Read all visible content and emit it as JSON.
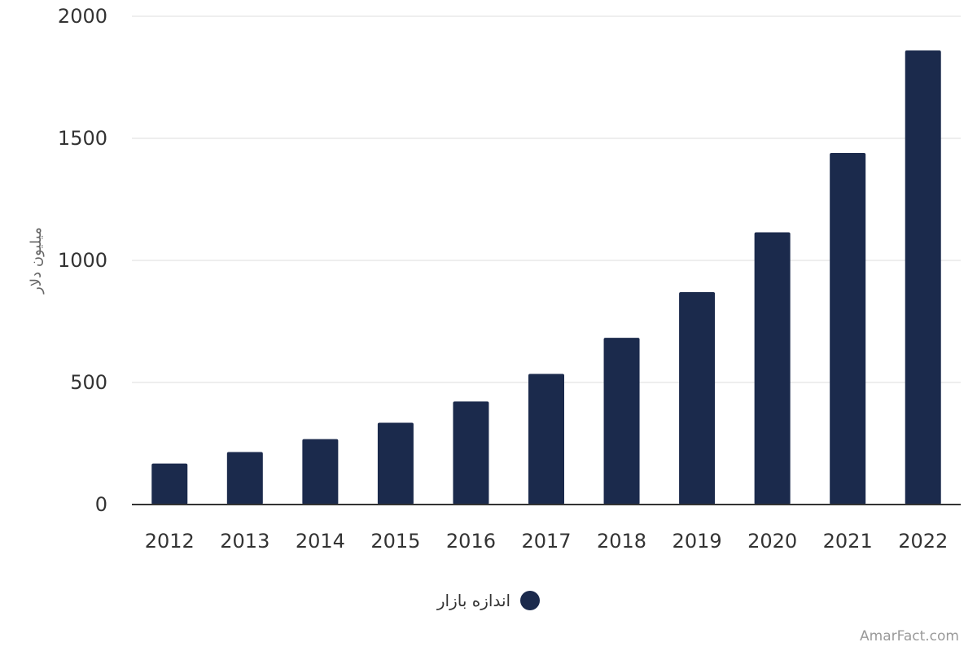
{
  "chart_data": {
    "type": "bar",
    "categories": [
      "2012",
      "2013",
      "2014",
      "2015",
      "2016",
      "2017",
      "2018",
      "2019",
      "2020",
      "2021",
      "2022"
    ],
    "series": [
      {
        "name": "اندازه بازار",
        "color": "#1b2a4c",
        "values": [
          168,
          215,
          268,
          335,
          422,
          535,
          683,
          870,
          1115,
          1440,
          1860
        ]
      }
    ],
    "ylabel": "میلیون دلار",
    "xlabel": "",
    "ylim": [
      0,
      2000
    ],
    "yticks": [
      0,
      500,
      1000,
      1500,
      2000
    ],
    "grid": true,
    "legend_position": "bottom"
  },
  "watermark": "AmarFact.com",
  "colors": {
    "bar": "#1b2a4c",
    "grid": "#dddddd",
    "axis": "#333333"
  }
}
